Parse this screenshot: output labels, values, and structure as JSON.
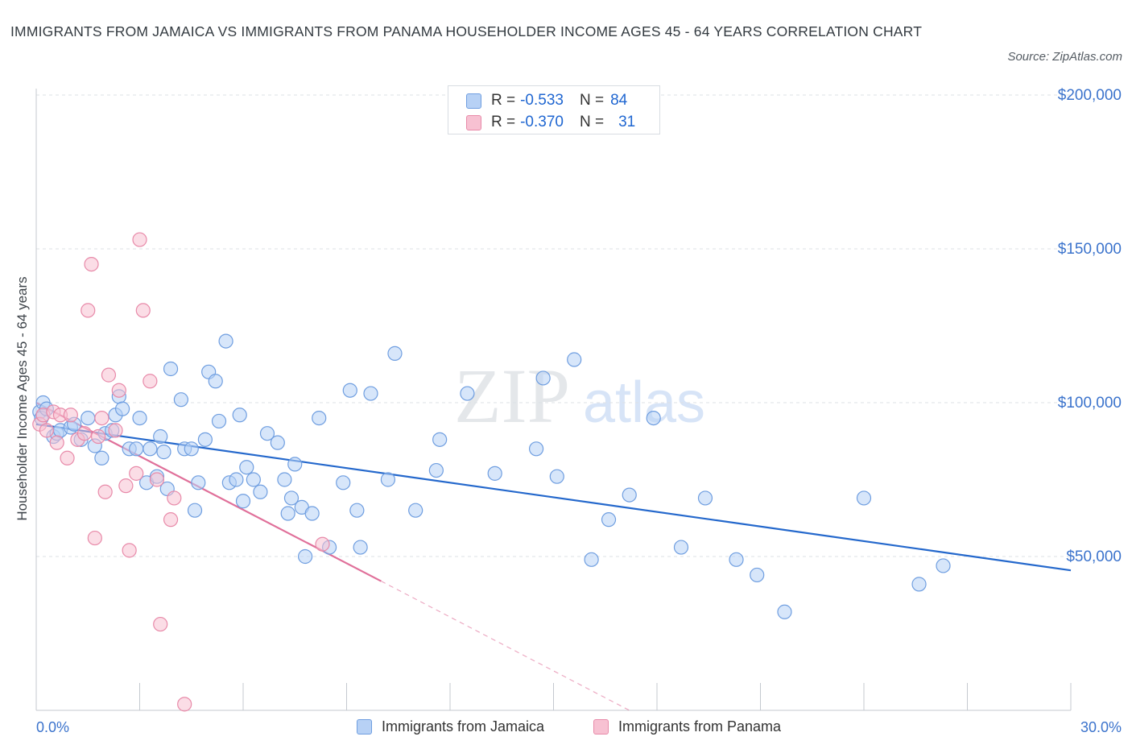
{
  "chart": {
    "title": "IMMIGRANTS FROM JAMAICA VS IMMIGRANTS FROM PANAMA HOUSEHOLDER INCOME AGES 45 - 64 YEARS CORRELATION CHART",
    "source": "Source: ZipAtlas.com",
    "watermark_zip": "ZIP",
    "watermark_atlas": "atlas",
    "ylabel": "Householder Income Ages 45 - 64 years",
    "legend": [
      {
        "r_label": "R =",
        "r_value": "-0.533",
        "n_label": "N =",
        "n_value": "84"
      },
      {
        "r_label": "R =",
        "r_value": "-0.370",
        "n_label": "N =",
        "n_value": "31"
      }
    ],
    "bottom_legend": [
      "Immigrants from Jamaica",
      "Immigrants from Panama"
    ]
  },
  "colors": {
    "jamaica_fill": "#b7d1f5",
    "jamaica_stroke": "#6f9ee0",
    "jamaica_line": "#2468cc",
    "panama_fill": "#f7c1d2",
    "panama_stroke": "#e88aa9",
    "panama_line": "#e0709a",
    "tick_label": "#3b73cc"
  },
  "chart_data": {
    "type": "scatter",
    "xlim": [
      0,
      30
    ],
    "ylim": [
      0,
      200000
    ],
    "x_tick_labels": [
      "0.0%",
      "30.0%"
    ],
    "y_ticks": [
      {
        "value": 200000,
        "label": "$200,000"
      },
      {
        "value": 150000,
        "label": "$150,000"
      },
      {
        "value": 100000,
        "label": "$100,000"
      },
      {
        "value": 50000,
        "label": "$50,000"
      }
    ],
    "grid": true,
    "legend_position": "top-center",
    "series": [
      {
        "name": "Immigrants from Jamaica",
        "points": [
          [
            0.1,
            97000
          ],
          [
            0.15,
            95000
          ],
          [
            0.2,
            100000
          ],
          [
            0.3,
            98000
          ],
          [
            0.5,
            89000
          ],
          [
            0.6,
            90000
          ],
          [
            0.7,
            91000
          ],
          [
            1.0,
            92000
          ],
          [
            1.1,
            93000
          ],
          [
            1.3,
            88000
          ],
          [
            1.5,
            95000
          ],
          [
            1.7,
            86000
          ],
          [
            1.9,
            82000
          ],
          [
            2.0,
            90000
          ],
          [
            2.2,
            91000
          ],
          [
            2.3,
            96000
          ],
          [
            2.4,
            102000
          ],
          [
            2.5,
            98000
          ],
          [
            2.7,
            85000
          ],
          [
            2.9,
            85000
          ],
          [
            3.0,
            95000
          ],
          [
            3.2,
            74000
          ],
          [
            3.3,
            85000
          ],
          [
            3.5,
            76000
          ],
          [
            3.6,
            89000
          ],
          [
            3.7,
            84000
          ],
          [
            3.8,
            72000
          ],
          [
            3.9,
            111000
          ],
          [
            4.2,
            101000
          ],
          [
            4.3,
            85000
          ],
          [
            4.5,
            85000
          ],
          [
            4.6,
            65000
          ],
          [
            4.7,
            74000
          ],
          [
            4.9,
            88000
          ],
          [
            5.0,
            110000
          ],
          [
            5.2,
            107000
          ],
          [
            5.3,
            94000
          ],
          [
            5.5,
            120000
          ],
          [
            5.6,
            74000
          ],
          [
            5.8,
            75000
          ],
          [
            5.9,
            96000
          ],
          [
            6.0,
            68000
          ],
          [
            6.1,
            79000
          ],
          [
            6.3,
            75000
          ],
          [
            6.5,
            71000
          ],
          [
            6.7,
            90000
          ],
          [
            7.0,
            87000
          ],
          [
            7.2,
            75000
          ],
          [
            7.3,
            64000
          ],
          [
            7.4,
            69000
          ],
          [
            7.5,
            80000
          ],
          [
            7.7,
            66000
          ],
          [
            7.8,
            50000
          ],
          [
            8.0,
            64000
          ],
          [
            8.2,
            95000
          ],
          [
            8.5,
            53000
          ],
          [
            8.9,
            74000
          ],
          [
            9.1,
            104000
          ],
          [
            9.3,
            65000
          ],
          [
            9.4,
            53000
          ],
          [
            9.7,
            103000
          ],
          [
            10.2,
            75000
          ],
          [
            10.4,
            116000
          ],
          [
            11.0,
            65000
          ],
          [
            11.6,
            78000
          ],
          [
            11.7,
            88000
          ],
          [
            12.5,
            103000
          ],
          [
            13.3,
            77000
          ],
          [
            14.5,
            85000
          ],
          [
            14.7,
            108000
          ],
          [
            15.1,
            76000
          ],
          [
            15.6,
            114000
          ],
          [
            16.1,
            49000
          ],
          [
            16.6,
            62000
          ],
          [
            17.2,
            70000
          ],
          [
            17.9,
            95000
          ],
          [
            18.7,
            53000
          ],
          [
            19.4,
            69000
          ],
          [
            20.3,
            49000
          ],
          [
            20.9,
            44000
          ],
          [
            21.7,
            32000
          ],
          [
            24.0,
            69000
          ],
          [
            25.6,
            41000
          ],
          [
            26.3,
            47000
          ]
        ],
        "trend": {
          "x1": 0,
          "y1": 93000,
          "x2": 30,
          "y2": 45500
        }
      },
      {
        "name": "Immigrants from Panama",
        "points": [
          [
            0.1,
            93000
          ],
          [
            0.2,
            96000
          ],
          [
            0.3,
            91000
          ],
          [
            0.5,
            97000
          ],
          [
            0.6,
            87000
          ],
          [
            0.7,
            96000
          ],
          [
            0.9,
            82000
          ],
          [
            1.0,
            96000
          ],
          [
            1.2,
            88000
          ],
          [
            1.4,
            90000
          ],
          [
            1.5,
            130000
          ],
          [
            1.6,
            145000
          ],
          [
            1.7,
            56000
          ],
          [
            1.8,
            89000
          ],
          [
            1.9,
            95000
          ],
          [
            2.0,
            71000
          ],
          [
            2.1,
            109000
          ],
          [
            2.3,
            91000
          ],
          [
            2.4,
            104000
          ],
          [
            2.6,
            73000
          ],
          [
            2.7,
            52000
          ],
          [
            2.9,
            77000
          ],
          [
            3.0,
            153000
          ],
          [
            3.1,
            130000
          ],
          [
            3.3,
            107000
          ],
          [
            3.5,
            75000
          ],
          [
            3.6,
            28000
          ],
          [
            3.9,
            62000
          ],
          [
            4.0,
            69000
          ],
          [
            4.3,
            2000
          ],
          [
            8.3,
            54000
          ]
        ],
        "trend": {
          "x1": 0,
          "y1": 100000,
          "x2": 10,
          "y2": 42000
        },
        "trend_extension": {
          "x1": 10,
          "y1": 42000,
          "x2": 17.2,
          "y2": 0
        }
      }
    ]
  }
}
